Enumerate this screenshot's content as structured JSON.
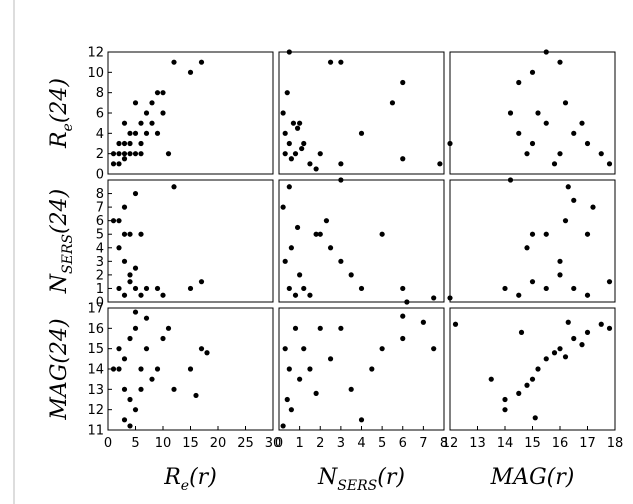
{
  "chart_data": {
    "type": "scatter",
    "layout": "3x3 scatter matrix",
    "grid": false,
    "x_labels": [
      {
        "base": "R",
        "sub": "e",
        "suffix": "(r)"
      },
      {
        "base": "N",
        "sub": "SERS",
        "suffix": "(r)"
      },
      {
        "base": "MAG",
        "sub": "",
        "suffix": "(r)"
      }
    ],
    "y_labels": [
      {
        "base": "R",
        "sub": "e",
        "suffix": "(24)"
      },
      {
        "base": "N",
        "sub": "SERS",
        "suffix": "(24)"
      },
      {
        "base": "MAG",
        "sub": "",
        "suffix": "(24)"
      }
    ],
    "x_axes": [
      {
        "lim": [
          0,
          30
        ],
        "ticks": [
          "0",
          "5",
          "10",
          "15",
          "20",
          "25",
          "30"
        ]
      },
      {
        "lim": [
          0,
          8
        ],
        "ticks": [
          "0",
          "1",
          "2",
          "3",
          "4",
          "5",
          "6",
          "7",
          "8"
        ]
      },
      {
        "lim": [
          12,
          18
        ],
        "ticks": [
          "12",
          "13",
          "14",
          "15",
          "16",
          "17",
          "18"
        ]
      }
    ],
    "y_axes": [
      {
        "lim": [
          0,
          12
        ],
        "ticks": [
          "0",
          "2",
          "4",
          "6",
          "8",
          "10",
          "12"
        ]
      },
      {
        "lim": [
          0,
          9
        ],
        "ticks": [
          "0",
          "1",
          "2",
          "3",
          "4",
          "5",
          "6",
          "7",
          "8"
        ]
      },
      {
        "lim": [
          11,
          17
        ],
        "ticks": [
          "11",
          "12",
          "13",
          "14",
          "15",
          "16",
          "17"
        ]
      }
    ],
    "panels": [
      {
        "row": 0,
        "col": 0,
        "points": [
          [
            2,
            2
          ],
          [
            3,
            1.5
          ],
          [
            4,
            3
          ],
          [
            5,
            4
          ],
          [
            6,
            5
          ],
          [
            7,
            6
          ],
          [
            8,
            7
          ],
          [
            9,
            8
          ],
          [
            10,
            6
          ],
          [
            4,
            2
          ],
          [
            3,
            3
          ],
          [
            5,
            2
          ],
          [
            6,
            3
          ],
          [
            2,
            1
          ],
          [
            1,
            2
          ],
          [
            7,
            4
          ],
          [
            8,
            5
          ],
          [
            12,
            11
          ],
          [
            15,
            10
          ],
          [
            17,
            11
          ],
          [
            11,
            2
          ],
          [
            3,
            5
          ],
          [
            5,
            7
          ],
          [
            6,
            2
          ],
          [
            4,
            4
          ],
          [
            2,
            3
          ],
          [
            1,
            1
          ],
          [
            3,
            2
          ],
          [
            9,
            4
          ],
          [
            10,
            8
          ]
        ]
      },
      {
        "row": 0,
        "col": 1,
        "points": [
          [
            0.3,
            4
          ],
          [
            0.5,
            3
          ],
          [
            0.8,
            2
          ],
          [
            1,
            5
          ],
          [
            0.2,
            6
          ],
          [
            0.4,
            8
          ],
          [
            1.2,
            3
          ],
          [
            1.5,
            1
          ],
          [
            2,
            2
          ],
          [
            0.6,
            1.5
          ],
          [
            0.9,
            4.5
          ],
          [
            1.1,
            2.5
          ],
          [
            0.3,
            2
          ],
          [
            0.7,
            5
          ],
          [
            2.5,
            11
          ],
          [
            3,
            11
          ],
          [
            4,
            4
          ],
          [
            5.5,
            7
          ],
          [
            6,
            9
          ],
          [
            6,
            1.5
          ],
          [
            0.5,
            12
          ],
          [
            1.8,
            0.5
          ],
          [
            3,
            1
          ],
          [
            7.8,
            1
          ]
        ]
      },
      {
        "row": 0,
        "col": 2,
        "points": [
          [
            14.5,
            4
          ],
          [
            15,
            3
          ],
          [
            15.5,
            5
          ],
          [
            16,
            2
          ],
          [
            16.5,
            4
          ],
          [
            17,
            3
          ],
          [
            15.2,
            6
          ],
          [
            16.2,
            7
          ],
          [
            14.8,
            2
          ],
          [
            15.8,
            1
          ],
          [
            17.5,
            2
          ],
          [
            14.5,
            9
          ],
          [
            15,
            10
          ],
          [
            16,
            11
          ],
          [
            15.5,
            12
          ],
          [
            14.2,
            6
          ],
          [
            16.8,
            5
          ],
          [
            17.8,
            1
          ],
          [
            12,
            3
          ]
        ]
      },
      {
        "row": 1,
        "col": 0,
        "points": [
          [
            2,
            1
          ],
          [
            3,
            0.5
          ],
          [
            4,
            2
          ],
          [
            5,
            1
          ],
          [
            6,
            0.5
          ],
          [
            7,
            1
          ],
          [
            3,
            5
          ],
          [
            4,
            5
          ],
          [
            6,
            5
          ],
          [
            2,
            4
          ],
          [
            3,
            3
          ],
          [
            1,
            6
          ],
          [
            2,
            6
          ],
          [
            5,
            8
          ],
          [
            12,
            8.5
          ],
          [
            15,
            1
          ],
          [
            17,
            1.5
          ],
          [
            9,
            1
          ],
          [
            10,
            0.5
          ],
          [
            3,
            7
          ],
          [
            4,
            1.5
          ],
          [
            5,
            2.5
          ]
        ]
      },
      {
        "row": 1,
        "col": 1,
        "points": [
          [
            0.5,
            1
          ],
          [
            0.8,
            0.5
          ],
          [
            1,
            2
          ],
          [
            1.2,
            1
          ],
          [
            1.5,
            0.5
          ],
          [
            0.3,
            3
          ],
          [
            0.6,
            4
          ],
          [
            0.9,
            5.5
          ],
          [
            0.2,
            7
          ],
          [
            1.8,
            5
          ],
          [
            2,
            5
          ],
          [
            2.3,
            6
          ],
          [
            2.5,
            4
          ],
          [
            3,
            3
          ],
          [
            3.5,
            2
          ],
          [
            4,
            1
          ],
          [
            5,
            5
          ],
          [
            6,
            1
          ],
          [
            6.2,
            0
          ],
          [
            7.5,
            0.3
          ],
          [
            3,
            9
          ],
          [
            0.5,
            8.5
          ]
        ]
      },
      {
        "row": 1,
        "col": 2,
        "points": [
          [
            14,
            1
          ],
          [
            14.5,
            0.5
          ],
          [
            15,
            1.5
          ],
          [
            15.5,
            1
          ],
          [
            16,
            2
          ],
          [
            16.5,
            1
          ],
          [
            17,
            0.5
          ],
          [
            15,
            5
          ],
          [
            15.5,
            5
          ],
          [
            16,
            3
          ],
          [
            16.2,
            6
          ],
          [
            17,
            5
          ],
          [
            17.2,
            7
          ],
          [
            16.5,
            7.5
          ],
          [
            14.8,
            4
          ],
          [
            16.3,
            8.5
          ],
          [
            12,
            0.3
          ],
          [
            14.2,
            9
          ],
          [
            17.8,
            1.5
          ]
        ]
      },
      {
        "row": 2,
        "col": 0,
        "points": [
          [
            2,
            15
          ],
          [
            3,
            14.5
          ],
          [
            4,
            15.5
          ],
          [
            5,
            16
          ],
          [
            6,
            14
          ],
          [
            7,
            15
          ],
          [
            8,
            13.5
          ],
          [
            9,
            14
          ],
          [
            10,
            15.5
          ],
          [
            3,
            13
          ],
          [
            4,
            12.5
          ],
          [
            5,
            12
          ],
          [
            6,
            13
          ],
          [
            2,
            14
          ],
          [
            11,
            16
          ],
          [
            12,
            13
          ],
          [
            15,
            14
          ],
          [
            17,
            15
          ],
          [
            18,
            14.8
          ],
          [
            16,
            12.7
          ],
          [
            3,
            11.5
          ],
          [
            4,
            11.2
          ],
          [
            5,
            16.8
          ],
          [
            7,
            16.5
          ],
          [
            1,
            14
          ]
        ]
      },
      {
        "row": 2,
        "col": 1,
        "points": [
          [
            0.3,
            15
          ],
          [
            0.5,
            14
          ],
          [
            0.8,
            16
          ],
          [
            1,
            13.5
          ],
          [
            1.2,
            15
          ],
          [
            0.4,
            12.5
          ],
          [
            0.6,
            12
          ],
          [
            1.5,
            14
          ],
          [
            2,
            16
          ],
          [
            2.5,
            14.5
          ],
          [
            3,
            16
          ],
          [
            3.5,
            13
          ],
          [
            4,
            11.5
          ],
          [
            4.5,
            14
          ],
          [
            5,
            15
          ],
          [
            6,
            15.5
          ],
          [
            7,
            16.3
          ],
          [
            7.5,
            15
          ],
          [
            0.2,
            11.2
          ],
          [
            1.8,
            12.8
          ],
          [
            6,
            16.6
          ]
        ]
      },
      {
        "row": 2,
        "col": 2,
        "points": [
          [
            15,
            13.5
          ],
          [
            15.2,
            14
          ],
          [
            15.5,
            14.5
          ],
          [
            16,
            15
          ],
          [
            16.5,
            15.5
          ],
          [
            17,
            15.8
          ],
          [
            17.5,
            16.2
          ],
          [
            14.5,
            12.8
          ],
          [
            14.8,
            13.2
          ],
          [
            16.2,
            14.6
          ],
          [
            16.8,
            15.2
          ],
          [
            17.8,
            16
          ],
          [
            14,
            12.5
          ],
          [
            15.8,
            14.8
          ],
          [
            16.3,
            16.3
          ],
          [
            13.5,
            13.5
          ],
          [
            12.2,
            16.2
          ],
          [
            14.6,
            15.8
          ],
          [
            15.1,
            11.6
          ],
          [
            14,
            12
          ]
        ]
      }
    ]
  }
}
